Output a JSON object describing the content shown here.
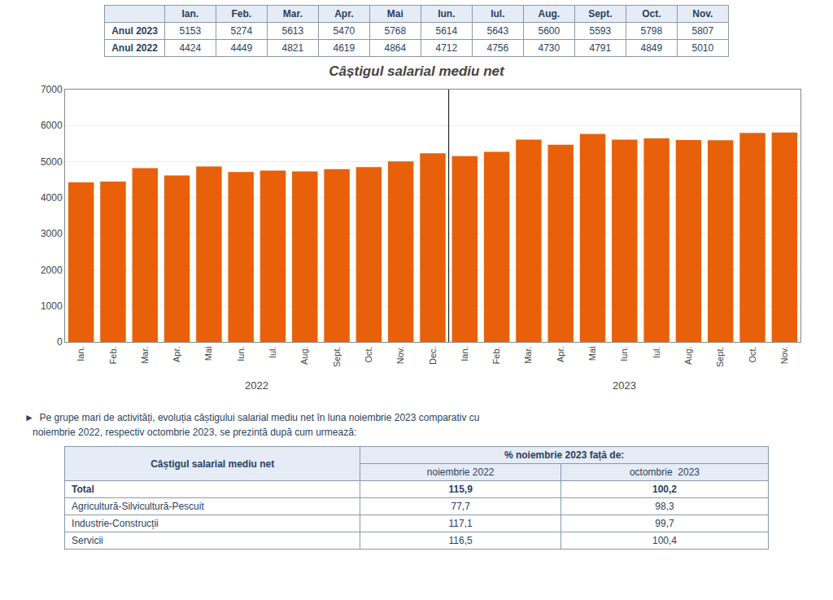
{
  "chart_data": [
    {
      "type": "table",
      "columns": [
        "Ian.",
        "Feb.",
        "Mar.",
        "Apr.",
        "Mai",
        "Iun.",
        "Iul.",
        "Aug.",
        "Sept.",
        "Oct.",
        "Nov."
      ],
      "rows": [
        {
          "label": "Anul 2023",
          "values": [
            5153,
            5274,
            5613,
            5470,
            5768,
            5614,
            5643,
            5600,
            5593,
            5798,
            5807
          ]
        },
        {
          "label": "Anul 2022",
          "values": [
            4424,
            4449,
            4821,
            4619,
            4864,
            4712,
            4756,
            4730,
            4791,
            4849,
            5010
          ]
        }
      ]
    },
    {
      "type": "bar",
      "title": "Câștigul salarial mediu net",
      "color": "#E8600A",
      "groups": [
        {
          "name": "2022",
          "categories": [
            "Ian.",
            "Feb.",
            "Mar.",
            "Apr.",
            "Mai",
            "Iun.",
            "Iul.",
            "Aug.",
            "Sept.",
            "Oct.",
            "Nov.",
            "Dec."
          ],
          "values": [
            4424,
            4449,
            4821,
            4619,
            4864,
            4712,
            4756,
            4730,
            4791,
            4849,
            5010,
            5232
          ]
        },
        {
          "name": "2023",
          "categories": [
            "Ian.",
            "Feb.",
            "Mar.",
            "Apr.",
            "Mai",
            "Iun.",
            "Iul.",
            "Aug.",
            "Sept.",
            "Oct.",
            "Nov."
          ],
          "values": [
            5153,
            5274,
            5613,
            5470,
            5768,
            5614,
            5643,
            5600,
            5593,
            5798,
            5807
          ]
        }
      ],
      "ylim": [
        0,
        7000
      ],
      "yticks": [
        0,
        1000,
        2000,
        3000,
        4000,
        5000,
        6000,
        7000
      ],
      "grid": true
    },
    {
      "type": "text",
      "lines": [
        "►  Pe grupe mari de activități, evoluția câștigului salarial mediu net în luna noiembrie 2023 comparativ cu",
        "   noiembrie 2022, respectiv octombrie 2023, se prezintă după cum urmează:"
      ]
    },
    {
      "type": "table",
      "header": {
        "label": "Câștigul salarial mediu net",
        "group": "% noiembrie 2023 față de:",
        "columns": [
          "noiembrie 2022",
          "octombrie  2023"
        ]
      },
      "rows": [
        {
          "label": "Total",
          "values": [
            115.9,
            100.2
          ],
          "value_labels": [
            "115,9",
            "100,2"
          ],
          "bold": true
        },
        {
          "label": "Agricultură-Silvicultură-Pescuit",
          "values": [
            77.7,
            98.3
          ],
          "value_labels": [
            "77,7",
            "98,3"
          ],
          "bold": false
        },
        {
          "label": "Industrie-Construcții",
          "values": [
            117.1,
            99.7
          ],
          "value_labels": [
            "117,1",
            "99,7"
          ],
          "bold": false
        },
        {
          "label": "Servicii",
          "values": [
            116.5,
            100.4
          ],
          "value_labels": [
            "116,5",
            "100,4"
          ],
          "bold": false
        }
      ]
    }
  ]
}
